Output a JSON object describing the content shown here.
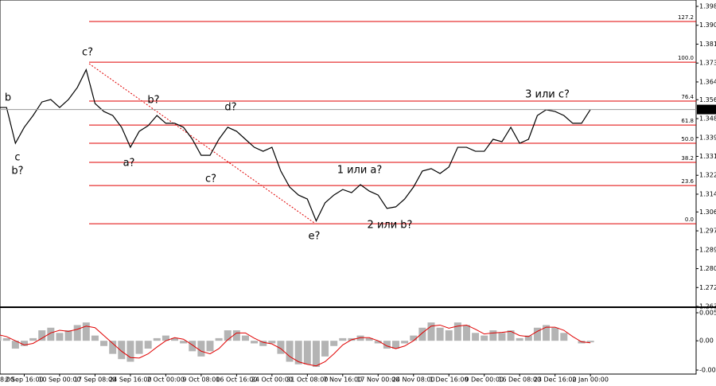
{
  "chart_data": [
    {
      "type": "line",
      "categories": [
        "8:00",
        null,
        null,
        null,
        "2 Sep 16:00",
        null,
        null,
        null,
        "10 Sep 00:00",
        null,
        null,
        null,
        "17 Sep 08:00",
        null,
        null,
        null,
        "24 Sep 16:00",
        null,
        null,
        null,
        "2 Oct 00:00",
        null,
        null,
        null,
        "9 Oct 08:00",
        null,
        null,
        null,
        "16 Oct 16:00",
        null,
        null,
        null,
        "24 Oct 00:00",
        null,
        null,
        null,
        "31 Oct 08:00",
        null,
        null,
        null,
        "7 Nov 16:00",
        null,
        null,
        null,
        "17 Nov 00:00",
        null,
        null,
        null,
        "24 Nov 08:00",
        null,
        null,
        null,
        "1 Dec 16:00",
        null,
        null,
        null,
        "9 Dec 00:00",
        null,
        null,
        null,
        "16 Dec 08:00",
        null,
        null,
        null,
        "23 Dec 16:00",
        null,
        null,
        null,
        "2 Jan 00:00"
      ],
      "values": [
        1.3512,
        1.353,
        1.353,
        1.3369,
        1.3441,
        1.3494,
        1.3555,
        1.3566,
        1.353,
        1.3566,
        1.362,
        1.37,
        1.3548,
        1.3512,
        1.3494,
        1.3441,
        1.3351,
        1.3423,
        1.3448,
        1.3494,
        1.3459,
        1.3459,
        1.3441,
        1.3387,
        1.3315,
        1.3315,
        1.3387,
        1.3441,
        1.3423,
        1.3387,
        1.3351,
        1.3333,
        1.3351,
        1.3244,
        1.3172,
        1.3136,
        1.3118,
        1.302,
        1.3101,
        1.3136,
        1.3161,
        1.3147,
        1.3183,
        1.3154,
        1.3136,
        1.3076,
        1.3083,
        1.3118,
        1.3172,
        1.3244,
        1.3255,
        1.3233,
        1.3262,
        1.3351,
        1.3351,
        1.3333,
        1.3333,
        1.3387,
        1.3376,
        1.3441,
        1.3369,
        1.3387,
        1.3494,
        1.352,
        1.3512,
        1.3494,
        1.3459,
        1.3459,
        1.3521
      ],
      "color": "#000000",
      "ylim": [
        1.2635,
        1.3985
      ],
      "yticks": [
        1.3985,
        {
          "value": 1.39,
          "label": "1.3900"
        },
        1.3815,
        {
          "value": 1.373,
          "label": "1.3730"
        },
        1.3645,
        1.3565,
        {
          "value": 1.348,
          "label": "1.3480"
        },
        1.3395,
        {
          "value": 1.331,
          "label": "1.3310"
        },
        1.3225,
        {
          "value": 1.314,
          "label": "1.3140"
        },
        {
          "value": 1.306,
          "label": "1.3060"
        },
        1.2975,
        {
          "value": 1.289,
          "label": "1.2890"
        },
        1.2805,
        {
          "value": 1.272,
          "label": "1.2720"
        },
        1.2635
      ],
      "current_price": 1.3521,
      "fib_color": "#e00000",
      "fib_levels": [
        {
          "label": "127.2",
          "price": 1.3917
        },
        {
          "label": "100.0",
          "price": 1.3734
        },
        {
          "label": "76.4",
          "price": 1.3559
        },
        {
          "label": "61.8",
          "price": 1.3451
        },
        {
          "label": "50.0",
          "price": 1.3369
        },
        {
          "label": "38.2",
          "price": 1.3283
        },
        {
          "label": "23.6",
          "price": 1.3179
        },
        {
          "label": "0.0",
          "price": 1.3007
        }
      ],
      "annotations": [
        {
          "text": "b",
          "color": "#1f1fcf"
        },
        {
          "text": "c",
          "color": "#1f1fcf"
        },
        {
          "text": "b?",
          "color": "#d01010"
        },
        {
          "text": "c?",
          "color": "#d01010"
        },
        {
          "text": "b?",
          "color": "#d01010"
        },
        {
          "text": "a?",
          "color": "#d01010"
        },
        {
          "text": "d?",
          "color": "#d01010"
        },
        {
          "text": "c?",
          "color": "#d01010"
        },
        {
          "text": "e?",
          "color": "#d01010"
        },
        {
          "text": "1 или a?",
          "color": "#d01010"
        },
        {
          "text": "2 или b?",
          "color": "#d01010"
        },
        {
          "text": "3 или c?",
          "color": "#d01010"
        }
      ]
    },
    {
      "type": "bar",
      "values": [
        0.0015,
        0.001,
        0.0005,
        -0.0015,
        -0.001,
        0.0005,
        0.002,
        0.0025,
        0.0015,
        0.002,
        0.003,
        0.0035,
        0.001,
        -0.001,
        -0.0025,
        -0.0035,
        -0.004,
        -0.0025,
        -0.0015,
        0.0005,
        0.001,
        0.0005,
        -0.0005,
        -0.002,
        -0.003,
        -0.002,
        0.0005,
        0.002,
        0.002,
        0.001,
        -0.0005,
        -0.001,
        -0.0005,
        -0.0025,
        -0.004,
        -0.0045,
        -0.0045,
        -0.005,
        -0.003,
        -0.001,
        0.0005,
        0.0005,
        0.001,
        0.0005,
        -0.0005,
        -0.0015,
        -0.0015,
        -0.0005,
        0.001,
        0.0025,
        0.0035,
        0.0025,
        0.002,
        0.0035,
        0.003,
        0.0015,
        0.001,
        0.002,
        0.0015,
        0.002,
        0.0005,
        0.001,
        0.0025,
        0.003,
        0.0025,
        0.0015,
        0,
        -0.0005,
        -0.0003
      ],
      "color": "#b4b4b4",
      "signal_values": [
        0.0012,
        0.0012,
        0.0008,
        0,
        -0.0008,
        -0.0005,
        0.0005,
        0.0015,
        0.002,
        0.0018,
        0.0022,
        0.0028,
        0.0025,
        0.001,
        -0.0005,
        -0.002,
        -0.0032,
        -0.0033,
        -0.0025,
        -0.0012,
        0,
        0.0006,
        0.0003,
        -0.0008,
        -0.002,
        -0.0025,
        -0.0015,
        0.0002,
        0.0015,
        0.0015,
        0.0005,
        -0.0003,
        -0.0006,
        -0.0015,
        -0.003,
        -0.004,
        -0.0045,
        -0.0048,
        -0.004,
        -0.0025,
        -0.0008,
        0.0002,
        0.0006,
        0.0006,
        0,
        -0.001,
        -0.0015,
        -0.001,
        0,
        0.0015,
        0.0028,
        0.003,
        0.0024,
        0.0028,
        0.003,
        0.0022,
        0.0013,
        0.0015,
        0.0016,
        0.0018,
        0.001,
        0.0008,
        0.0018,
        0.0026,
        0.0026,
        0.002,
        0.0008,
        -0.0002,
        -0.0004
      ],
      "signal_color": "#e00000",
      "ylim": [
        -0.0056,
        0.00535
      ],
      "yticks": [
        0.00535,
        {
          "value": 0,
          "label": "0.00"
        },
        -0.0056
      ]
    }
  ]
}
